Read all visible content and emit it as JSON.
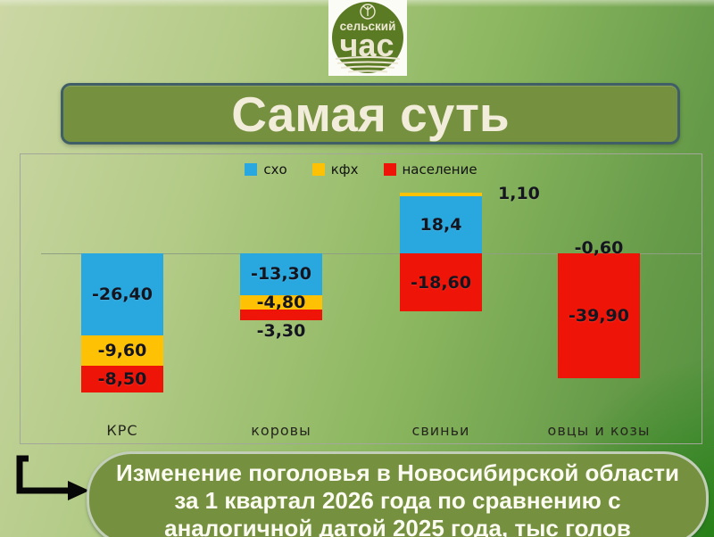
{
  "slide": {
    "title": "Самая суть",
    "logo": {
      "line1": "сельский",
      "line2": "час"
    },
    "caption_lines": [
      "Изменение поголовья в Новосибирской области",
      "за 1 квартал 2026 года по сравнению с",
      "аналогичной датой 2025 года, тыс голов"
    ]
  },
  "colors": {
    "accent_olive": "#75903e",
    "banner_border": "#3f5e66",
    "pill_border": "#c3ceb8",
    "blue": "#29a8e0",
    "yellow": "#ffc103",
    "red": "#ee1407",
    "logo_green": "#5a7a24"
  },
  "chart_data": {
    "type": "bar",
    "stacked": true,
    "title": "",
    "xlabel": "",
    "ylabel": "",
    "unit": "тыс голов",
    "grid": "zero-line-only",
    "legend_position": "top",
    "categories": [
      "КРС",
      "коровы",
      "свиньи",
      "овцы и козы"
    ],
    "series": [
      {
        "name": "схо",
        "color": "#29a8e0",
        "values": [
          -26.4,
          -13.3,
          18.4,
          null
        ]
      },
      {
        "name": "кфх",
        "color": "#ffc103",
        "values": [
          -9.6,
          -4.8,
          1.1,
          null
        ]
      },
      {
        "name": "население",
        "color": "#ee1407",
        "values": [
          -8.5,
          -3.3,
          -18.6,
          -39.9
        ]
      }
    ],
    "bars": [
      {
        "category": "КРС",
        "segments": [
          {
            "series": "схо",
            "value": -26.4,
            "label": "-26,40",
            "label_pos": "inside"
          },
          {
            "series": "кфх",
            "value": -9.6,
            "label": "-9,60",
            "label_pos": "inside"
          },
          {
            "series": "население",
            "value": -8.5,
            "label": "-8,50",
            "label_pos": "inside"
          }
        ]
      },
      {
        "category": "коровы",
        "segments": [
          {
            "series": "схо",
            "value": -13.3,
            "label": "-13,30",
            "label_pos": "inside"
          },
          {
            "series": "кфх",
            "value": -4.8,
            "label": "-4,80",
            "label_pos": "inside"
          },
          {
            "series": "население",
            "value": -3.3,
            "label": "-3,30",
            "label_pos": "below"
          }
        ]
      },
      {
        "category": "свиньи",
        "segments": [
          {
            "series": "схо",
            "value": 18.4,
            "label": "18,4",
            "label_pos": "inside"
          },
          {
            "series": "кфх",
            "value": 1.1,
            "label": "1,10",
            "label_pos": "right"
          },
          {
            "series": "население",
            "value": -18.6,
            "label": "-18,60",
            "label_pos": "inside"
          }
        ]
      },
      {
        "category": "овцы и козы",
        "annotation": {
          "label": "-0,60",
          "label_pos": "above"
        },
        "segments": [
          {
            "series": "население",
            "value": -39.9,
            "label": "-39,90",
            "label_pos": "inside"
          }
        ]
      }
    ]
  }
}
